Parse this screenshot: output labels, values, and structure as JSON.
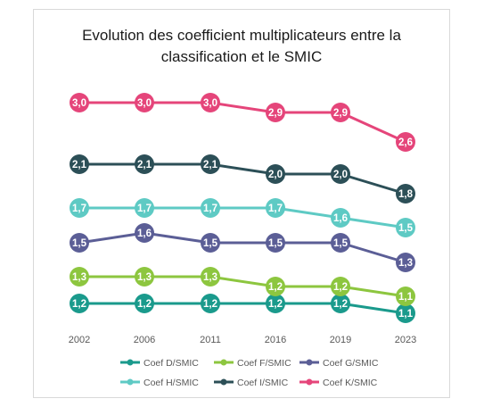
{
  "chart_data": {
    "type": "line",
    "title_line1": "Evolution des coefficient multiplicateurs entre la",
    "title_line2": "classification et le SMIC",
    "categories": [
      "2002",
      "2006",
      "2011",
      "2016",
      "2019",
      "2023"
    ],
    "xlabel": "",
    "ylabel": "",
    "grid": false,
    "legend_position": "bottom",
    "data_labels": true,
    "series": [
      {
        "name": "Coef D/SMIC",
        "color": "#1a9a8c",
        "values": [
          1.2,
          1.2,
          1.2,
          1.2,
          1.2,
          1.1
        ],
        "labels": [
          "1,2",
          "1,2",
          "1,2",
          "1,2",
          "1,2",
          "1,1"
        ]
      },
      {
        "name": "Coef F/SMIC",
        "color": "#8dc63f",
        "values": [
          1.3,
          1.3,
          1.3,
          1.2,
          1.2,
          1.1
        ],
        "labels": [
          "1,3",
          "1,3",
          "1,3",
          "1,2",
          "1,2",
          "1,1"
        ]
      },
      {
        "name": "Coef G/SMIC",
        "color": "#5b5e96",
        "values": [
          1.5,
          1.6,
          1.5,
          1.5,
          1.5,
          1.3
        ],
        "labels": [
          "1,5",
          "1,6",
          "1,5",
          "1,5",
          "1,5",
          "1,3"
        ]
      },
      {
        "name": "Coef H/SMIC",
        "color": "#5ecac4",
        "values": [
          1.7,
          1.7,
          1.7,
          1.7,
          1.6,
          1.5
        ],
        "labels": [
          "1,7",
          "1,7",
          "1,7",
          "1,7",
          "1,6",
          "1,5"
        ]
      },
      {
        "name": "Coef I/SMIC",
        "color": "#2c4f57",
        "values": [
          2.1,
          2.1,
          2.1,
          2.0,
          2.0,
          1.8
        ],
        "labels": [
          "2,1",
          "2,1",
          "2,1",
          "2,0",
          "2,0",
          "1,8"
        ]
      },
      {
        "name": "Coef K/SMIC",
        "color": "#e5457a",
        "values": [
          3.0,
          3.0,
          3.0,
          2.9,
          2.9,
          2.6
        ],
        "labels": [
          "3,0",
          "3,0",
          "3,0",
          "2,9",
          "2,9",
          "2,6"
        ]
      }
    ]
  }
}
